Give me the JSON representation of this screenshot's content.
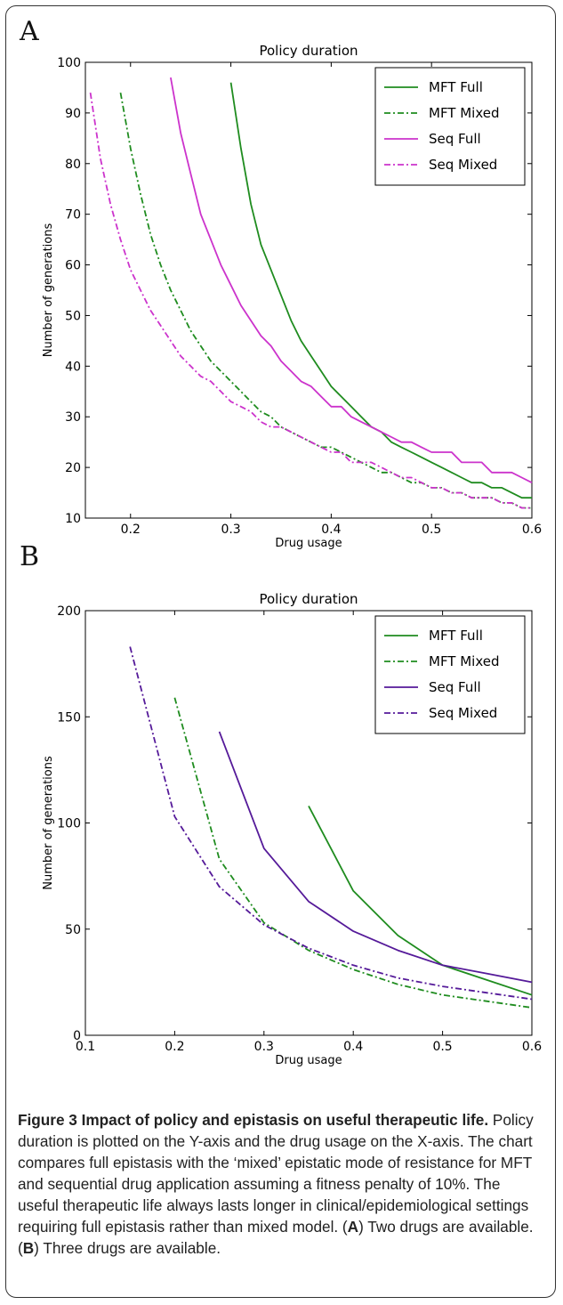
{
  "caption": {
    "title": "Figure 3 Impact of policy and epistasis on useful therapeutic life.",
    "p1": " Policy duration is plotted on the Y-axis and the drug usage on the X-axis. The chart compares full epistasis with the ‘mixed’ epistatic mode of resistance for MFT and sequential drug application assuming a fitness penalty of 10%. The useful therapeutic life always lasts longer in clinical/epidemiological settings requiring full epistasis rather than mixed model. (",
    "a_letter": "A",
    "p2": ") Two drugs are available. (",
    "b_letter": "B",
    "p3": ") Three drugs are available."
  },
  "chart_data": [
    {
      "panel_label": "A",
      "type": "line",
      "title": "Policy duration",
      "xlabel": "Drug usage",
      "ylabel": "Number of generations",
      "xlim": [
        0.155,
        0.6
      ],
      "ylim": [
        10,
        100
      ],
      "xticks": [
        0.2,
        0.3,
        0.4,
        0.5,
        0.6
      ],
      "yticks": [
        10,
        20,
        30,
        40,
        50,
        60,
        70,
        80,
        90,
        100
      ],
      "legend_position": "top-right",
      "series": [
        {
          "name": "MFT Full",
          "color": "#1f8c1f",
          "dash": "solid",
          "x": [
            0.3,
            0.31,
            0.32,
            0.33,
            0.34,
            0.35,
            0.36,
            0.37,
            0.38,
            0.39,
            0.4,
            0.41,
            0.42,
            0.43,
            0.44,
            0.45,
            0.46,
            0.47,
            0.48,
            0.49,
            0.5,
            0.51,
            0.52,
            0.53,
            0.54,
            0.55,
            0.56,
            0.57,
            0.58,
            0.59,
            0.6
          ],
          "y": [
            96,
            83,
            72,
            64,
            59,
            54,
            49,
            45,
            42,
            39,
            36,
            34,
            32,
            30,
            28,
            27,
            25,
            24,
            23,
            22,
            21,
            20,
            19,
            18,
            17,
            17,
            16,
            16,
            15,
            14,
            14
          ]
        },
        {
          "name": "MFT Mixed",
          "color": "#1f8c1f",
          "dash": "dashdot",
          "x": [
            0.19,
            0.2,
            0.21,
            0.22,
            0.23,
            0.24,
            0.25,
            0.26,
            0.27,
            0.28,
            0.29,
            0.3,
            0.31,
            0.32,
            0.33,
            0.34,
            0.35,
            0.36,
            0.37,
            0.38,
            0.39,
            0.4,
            0.41,
            0.42,
            0.43,
            0.44,
            0.45,
            0.46,
            0.47,
            0.48,
            0.49,
            0.5,
            0.51,
            0.52,
            0.53,
            0.54,
            0.55,
            0.56,
            0.57,
            0.58,
            0.59,
            0.6
          ],
          "y": [
            94,
            83,
            74,
            66,
            60,
            55,
            51,
            47,
            44,
            41,
            39,
            37,
            35,
            33,
            31,
            30,
            28,
            27,
            26,
            25,
            24,
            24,
            23,
            22,
            21,
            20,
            19,
            19,
            18,
            17,
            17,
            16,
            16,
            15,
            15,
            14,
            14,
            14,
            13,
            13,
            12,
            12
          ]
        },
        {
          "name": "Seq Full",
          "color": "#cc33cc",
          "dash": "solid",
          "x": [
            0.24,
            0.25,
            0.26,
            0.27,
            0.28,
            0.29,
            0.3,
            0.31,
            0.32,
            0.33,
            0.34,
            0.35,
            0.36,
            0.37,
            0.38,
            0.39,
            0.4,
            0.41,
            0.42,
            0.43,
            0.44,
            0.45,
            0.46,
            0.47,
            0.48,
            0.49,
            0.5,
            0.51,
            0.52,
            0.53,
            0.54,
            0.55,
            0.56,
            0.57,
            0.58,
            0.59,
            0.6
          ],
          "y": [
            97,
            86,
            78,
            70,
            65,
            60,
            56,
            52,
            49,
            46,
            44,
            41,
            39,
            37,
            36,
            34,
            32,
            32,
            30,
            29,
            28,
            27,
            26,
            25,
            25,
            24,
            23,
            23,
            23,
            21,
            21,
            21,
            19,
            19,
            19,
            18,
            17
          ]
        },
        {
          "name": "Seq Mixed",
          "color": "#cc33cc",
          "dash": "dashdot",
          "x": [
            0.16,
            0.17,
            0.18,
            0.19,
            0.2,
            0.21,
            0.22,
            0.23,
            0.24,
            0.25,
            0.26,
            0.27,
            0.28,
            0.29,
            0.3,
            0.31,
            0.32,
            0.33,
            0.34,
            0.35,
            0.36,
            0.37,
            0.38,
            0.39,
            0.4,
            0.41,
            0.42,
            0.43,
            0.44,
            0.45,
            0.46,
            0.47,
            0.48,
            0.49,
            0.5,
            0.51,
            0.52,
            0.53,
            0.54,
            0.55,
            0.56,
            0.57,
            0.58,
            0.59,
            0.6
          ],
          "y": [
            94,
            81,
            72,
            65,
            59,
            55,
            51,
            48,
            45,
            42,
            40,
            38,
            37,
            35,
            33,
            32,
            31,
            29,
            28,
            28,
            27,
            26,
            25,
            24,
            23,
            23,
            21,
            21,
            21,
            20,
            19,
            18,
            18,
            17,
            16,
            16,
            15,
            15,
            14,
            14,
            14,
            13,
            13,
            12,
            12
          ]
        }
      ]
    },
    {
      "panel_label": "B",
      "type": "line",
      "title": "Policy duration",
      "xlabel": "Drug usage",
      "ylabel": "Number of generations",
      "xlim": [
        0.1,
        0.6
      ],
      "ylim": [
        0,
        200
      ],
      "xticks": [
        0.1,
        0.2,
        0.3,
        0.4,
        0.5,
        0.6
      ],
      "yticks": [
        0,
        50,
        100,
        150,
        200
      ],
      "legend_position": "top-right",
      "series": [
        {
          "name": "MFT Full",
          "color": "#1f8c1f",
          "dash": "solid",
          "x": [
            0.35,
            0.4,
            0.45,
            0.5,
            0.55,
            0.6
          ],
          "y": [
            108,
            68,
            47,
            33,
            26,
            19
          ]
        },
        {
          "name": "MFT Mixed",
          "color": "#1f8c1f",
          "dash": "dashdot",
          "x": [
            0.2,
            0.25,
            0.3,
            0.35,
            0.4,
            0.45,
            0.5,
            0.55,
            0.6
          ],
          "y": [
            159,
            83,
            53,
            40,
            31,
            24,
            19,
            16,
            13
          ]
        },
        {
          "name": "Seq Full",
          "color": "#551a99",
          "dash": "solid",
          "x": [
            0.25,
            0.3,
            0.35,
            0.4,
            0.45,
            0.5,
            0.55,
            0.6
          ],
          "y": [
            143,
            88,
            63,
            49,
            40,
            33,
            29,
            25
          ]
        },
        {
          "name": "Seq Mixed",
          "color": "#551a99",
          "dash": "dashdot",
          "x": [
            0.15,
            0.2,
            0.25,
            0.3,
            0.35,
            0.4,
            0.45,
            0.5,
            0.55,
            0.6
          ],
          "y": [
            183,
            103,
            70,
            52,
            41,
            33,
            27,
            23,
            20,
            17
          ]
        }
      ]
    }
  ]
}
